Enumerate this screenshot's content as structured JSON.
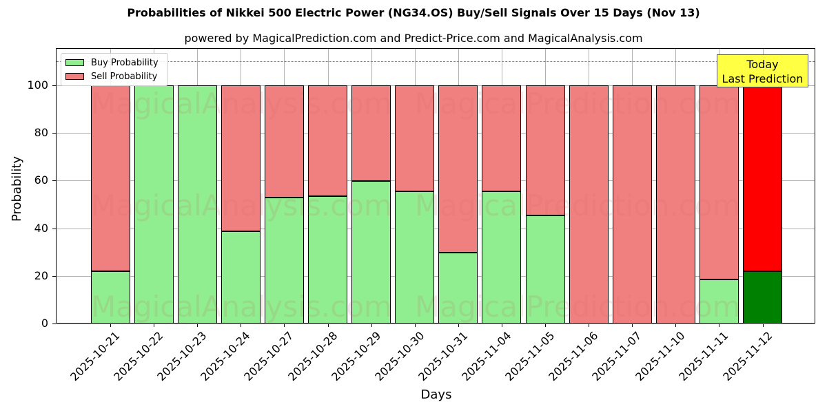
{
  "chart_data": {
    "type": "bar",
    "stacked": true,
    "title": "Probabilities of Nikkei 500 Electric Power (NG34.OS) Buy/Sell Signals Over 15 Days (Nov 13)",
    "subtitle": "powered by MagicalPrediction.com and Predict-Price.com and MagicalAnalysis.com",
    "xlabel": "Days",
    "ylabel": "Probability",
    "ylim": [
      0,
      115
    ],
    "yticks": [
      0,
      20,
      40,
      60,
      80,
      100
    ],
    "grid": true,
    "legend_position": "upper left",
    "categories": [
      "2025-10-21",
      "2025-10-22",
      "2025-10-23",
      "2025-10-24",
      "2025-10-27",
      "2025-10-28",
      "2025-10-29",
      "2025-10-30",
      "2025-10-31",
      "2025-11-04",
      "2025-11-05",
      "2025-11-06",
      "2025-11-07",
      "2025-11-10",
      "2025-11-11",
      "2025-11-12"
    ],
    "series": [
      {
        "name": "Buy Probability",
        "color": "#90ee90",
        "values": [
          21.9,
          100,
          100,
          38.8,
          53.0,
          53.6,
          59.9,
          55.4,
          29.9,
          55.4,
          45.5,
          0,
          0,
          0,
          18.5,
          21.9
        ]
      },
      {
        "name": "Sell Probability",
        "color": "#f08080",
        "values": [
          78.1,
          0,
          0,
          61.2,
          47.0,
          46.4,
          40.1,
          44.6,
          70.1,
          44.6,
          54.5,
          100,
          100,
          100,
          81.5,
          78.1
        ]
      }
    ],
    "highlight": {
      "index": 15,
      "buy_color": "#008000",
      "sell_color": "#ff0000"
    },
    "reference_line": {
      "y": 110,
      "style": "dashed",
      "color": "#808080"
    },
    "annotations": [
      {
        "text": "Today\nLast Prediction",
        "line1": "Today",
        "line2": "Last Prediction",
        "x": "2025-11-12",
        "y": 106,
        "background": "#ffff44"
      }
    ],
    "watermarks": [
      "MagicalAnalysis.com",
      "MagicalPrediction.com"
    ]
  }
}
